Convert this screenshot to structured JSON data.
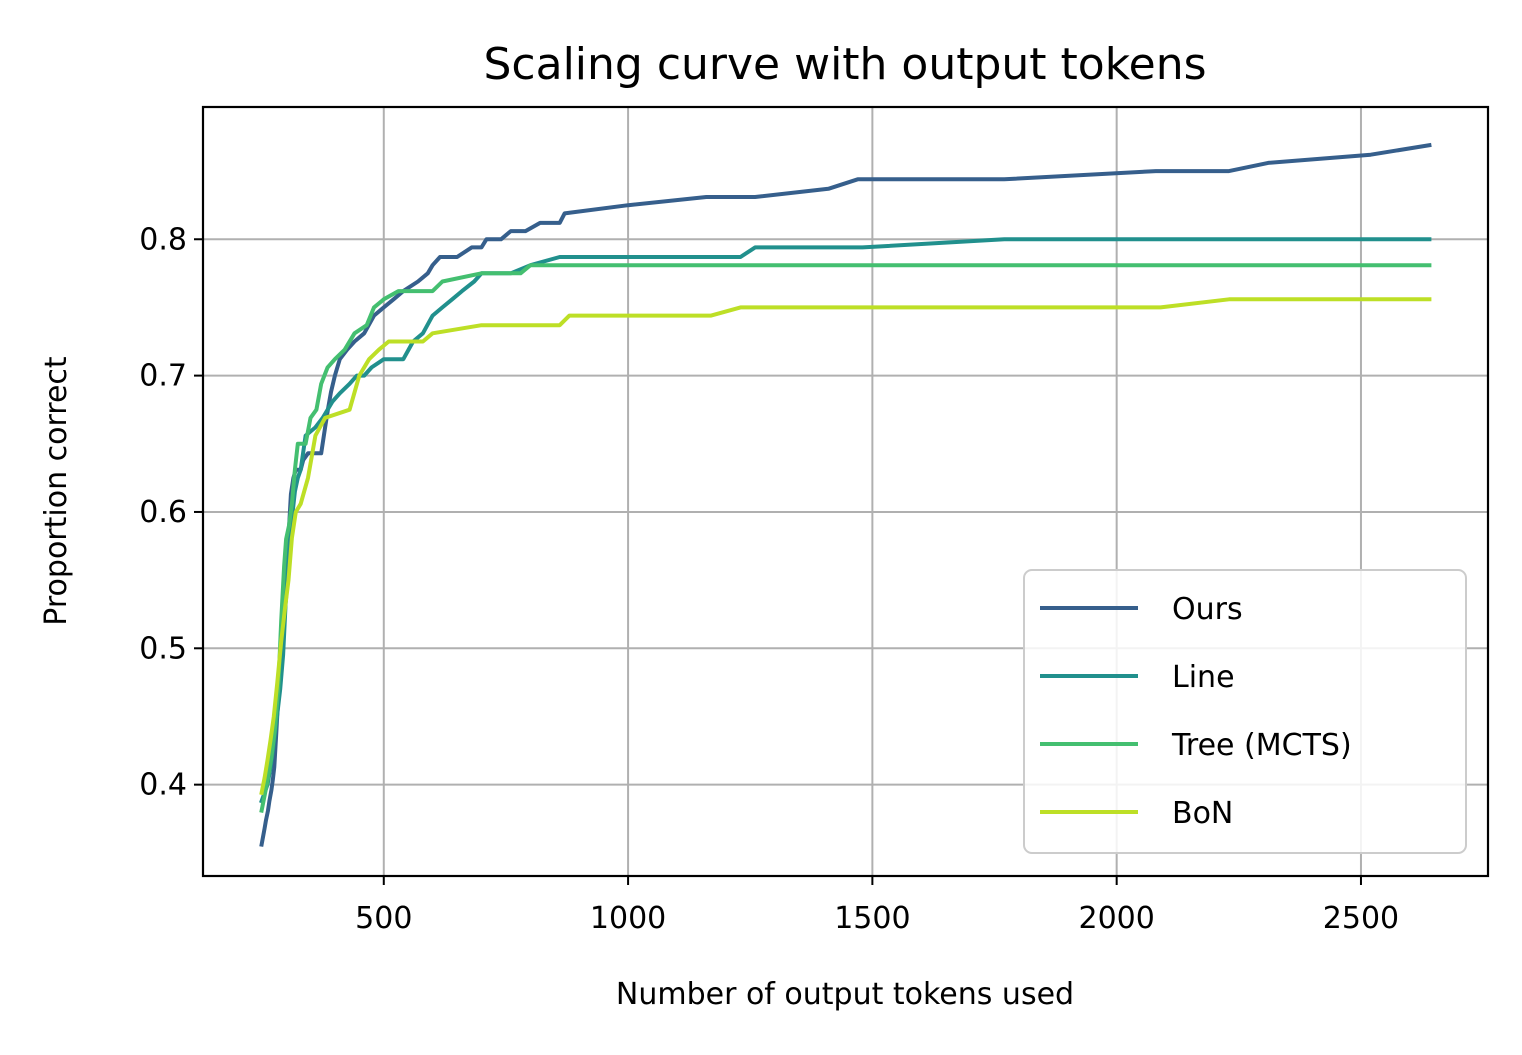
{
  "chart_data": {
    "type": "line",
    "title": "Scaling curve with output tokens",
    "xlabel": "Number of output tokens used",
    "ylabel": "Proportion correct",
    "xlim": [
      130,
      2760
    ],
    "ylim": [
      0.333,
      0.897
    ],
    "xticks": [
      500,
      1000,
      1500,
      2000,
      2500
    ],
    "xtick_labels": [
      "500",
      "1000",
      "1500",
      "2000",
      "2500"
    ],
    "yticks": [
      0.4,
      0.5,
      0.6,
      0.7,
      0.8
    ],
    "ytick_labels": [
      "0.4",
      "0.5",
      "0.6",
      "0.7",
      "0.8"
    ],
    "grid": true,
    "legend_position": "lower-right",
    "series": [
      {
        "name": "Ours",
        "color": "#365f8c",
        "points": [
          [
            250,
            0.356
          ],
          [
            253,
            0.362
          ],
          [
            256,
            0.368
          ],
          [
            259,
            0.374
          ],
          [
            263,
            0.381
          ],
          [
            266,
            0.388
          ],
          [
            270,
            0.396
          ],
          [
            273,
            0.404
          ],
          [
            276,
            0.413
          ],
          [
            280,
            0.438
          ],
          [
            284,
            0.463
          ],
          [
            288,
            0.488
          ],
          [
            292,
            0.505
          ],
          [
            296,
            0.525
          ],
          [
            300,
            0.537
          ],
          [
            303,
            0.569
          ],
          [
            306,
            0.588
          ],
          [
            310,
            0.613
          ],
          [
            315,
            0.625
          ],
          [
            320,
            0.631
          ],
          [
            330,
            0.631
          ],
          [
            335,
            0.638
          ],
          [
            345,
            0.643
          ],
          [
            372,
            0.643
          ],
          [
            380,
            0.662
          ],
          [
            386,
            0.676
          ],
          [
            392,
            0.688
          ],
          [
            400,
            0.7
          ],
          [
            410,
            0.712
          ],
          [
            425,
            0.719
          ],
          [
            440,
            0.725
          ],
          [
            460,
            0.731
          ],
          [
            480,
            0.744
          ],
          [
            500,
            0.75
          ],
          [
            520,
            0.756
          ],
          [
            540,
            0.762
          ],
          [
            570,
            0.769
          ],
          [
            590,
            0.775
          ],
          [
            600,
            0.781
          ],
          [
            615,
            0.787
          ],
          [
            650,
            0.787
          ],
          [
            680,
            0.794
          ],
          [
            700,
            0.794
          ],
          [
            710,
            0.8
          ],
          [
            740,
            0.8
          ],
          [
            760,
            0.806
          ],
          [
            790,
            0.806
          ],
          [
            820,
            0.812
          ],
          [
            860,
            0.812
          ],
          [
            870,
            0.819
          ],
          [
            1000,
            0.825
          ],
          [
            1160,
            0.831
          ],
          [
            1260,
            0.831
          ],
          [
            1410,
            0.837
          ],
          [
            1470,
            0.844
          ],
          [
            1770,
            0.844
          ],
          [
            2080,
            0.85
          ],
          [
            2230,
            0.85
          ],
          [
            2310,
            0.856
          ],
          [
            2520,
            0.862
          ],
          [
            2640,
            0.869
          ]
        ]
      },
      {
        "name": "Line",
        "color": "#21908d",
        "points": [
          [
            250,
            0.388
          ],
          [
            256,
            0.394
          ],
          [
            262,
            0.4
          ],
          [
            268,
            0.412
          ],
          [
            273,
            0.425
          ],
          [
            278,
            0.44
          ],
          [
            283,
            0.455
          ],
          [
            288,
            0.47
          ],
          [
            294,
            0.495
          ],
          [
            300,
            0.54
          ],
          [
            306,
            0.57
          ],
          [
            312,
            0.595
          ],
          [
            318,
            0.615
          ],
          [
            324,
            0.625
          ],
          [
            330,
            0.631
          ],
          [
            340,
            0.656
          ],
          [
            360,
            0.662
          ],
          [
            375,
            0.669
          ],
          [
            395,
            0.681
          ],
          [
            410,
            0.687
          ],
          [
            430,
            0.694
          ],
          [
            445,
            0.7
          ],
          [
            460,
            0.7
          ],
          [
            475,
            0.706
          ],
          [
            500,
            0.712
          ],
          [
            540,
            0.712
          ],
          [
            560,
            0.725
          ],
          [
            580,
            0.731
          ],
          [
            600,
            0.744
          ],
          [
            620,
            0.75
          ],
          [
            640,
            0.756
          ],
          [
            660,
            0.762
          ],
          [
            685,
            0.769
          ],
          [
            700,
            0.775
          ],
          [
            760,
            0.775
          ],
          [
            800,
            0.781
          ],
          [
            860,
            0.787
          ],
          [
            1230,
            0.787
          ],
          [
            1260,
            0.794
          ],
          [
            1480,
            0.794
          ],
          [
            1770,
            0.8
          ],
          [
            2640,
            0.8
          ]
        ]
      },
      {
        "name": "Tree (MCTS)",
        "color": "#44bf70",
        "points": [
          [
            250,
            0.381
          ],
          [
            256,
            0.392
          ],
          [
            263,
            0.405
          ],
          [
            270,
            0.42
          ],
          [
            277,
            0.44
          ],
          [
            284,
            0.47
          ],
          [
            290,
            0.52
          ],
          [
            296,
            0.56
          ],
          [
            300,
            0.58
          ],
          [
            306,
            0.59
          ],
          [
            312,
            0.606
          ],
          [
            318,
            0.631
          ],
          [
            324,
            0.65
          ],
          [
            340,
            0.65
          ],
          [
            350,
            0.669
          ],
          [
            362,
            0.675
          ],
          [
            372,
            0.694
          ],
          [
            385,
            0.706
          ],
          [
            400,
            0.712
          ],
          [
            420,
            0.719
          ],
          [
            440,
            0.731
          ],
          [
            465,
            0.737
          ],
          [
            480,
            0.75
          ],
          [
            500,
            0.756
          ],
          [
            530,
            0.762
          ],
          [
            600,
            0.762
          ],
          [
            620,
            0.769
          ],
          [
            700,
            0.775
          ],
          [
            780,
            0.775
          ],
          [
            800,
            0.781
          ],
          [
            2640,
            0.781
          ]
        ]
      },
      {
        "name": "BoN",
        "color": "#bddf26",
        "points": [
          [
            250,
            0.394
          ],
          [
            256,
            0.405
          ],
          [
            262,
            0.418
          ],
          [
            268,
            0.432
          ],
          [
            275,
            0.45
          ],
          [
            282,
            0.475
          ],
          [
            290,
            0.505
          ],
          [
            298,
            0.53
          ],
          [
            305,
            0.55
          ],
          [
            312,
            0.581
          ],
          [
            320,
            0.6
          ],
          [
            330,
            0.606
          ],
          [
            345,
            0.625
          ],
          [
            360,
            0.656
          ],
          [
            380,
            0.669
          ],
          [
            430,
            0.675
          ],
          [
            450,
            0.7
          ],
          [
            470,
            0.712
          ],
          [
            490,
            0.719
          ],
          [
            510,
            0.725
          ],
          [
            580,
            0.725
          ],
          [
            600,
            0.731
          ],
          [
            700,
            0.737
          ],
          [
            860,
            0.737
          ],
          [
            880,
            0.744
          ],
          [
            1170,
            0.744
          ],
          [
            1230,
            0.75
          ],
          [
            2090,
            0.75
          ],
          [
            2230,
            0.756
          ],
          [
            2640,
            0.756
          ]
        ]
      }
    ]
  }
}
